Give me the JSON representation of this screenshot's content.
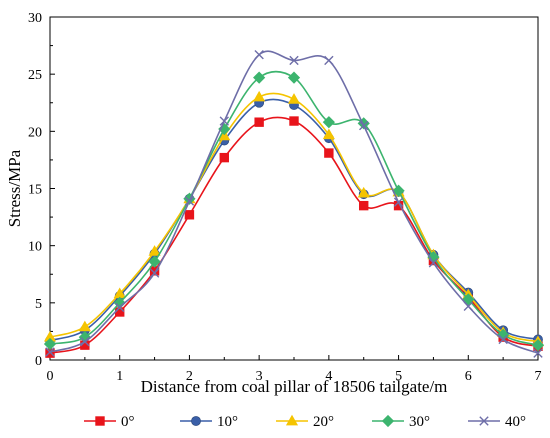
{
  "chart_data": {
    "type": "line",
    "xlabel": "Distance from coal pillar of 18506 tailgate/m",
    "ylabel": "Stress/MPa",
    "xlim": [
      0,
      7
    ],
    "ylim": [
      0,
      30
    ],
    "xticks": [
      "0",
      "1",
      "2",
      "3",
      "4",
      "5",
      "6",
      "7"
    ],
    "yticks": [
      "0",
      "5",
      "10",
      "15",
      "20",
      "25",
      "30"
    ],
    "grid": false,
    "legend_position": "bottom",
    "x": [
      0,
      0.5,
      1,
      1.5,
      2,
      2.5,
      3,
      3.5,
      4,
      4.5,
      5,
      5.5,
      6,
      6.5,
      7
    ],
    "series": [
      {
        "name": "0°",
        "color": "#e8141b",
        "marker": "square",
        "values": [
          0.6,
          1.3,
          4.2,
          7.8,
          12.7,
          17.7,
          20.8,
          20.9,
          18.1,
          13.5,
          13.5,
          8.7,
          5.5,
          2.0,
          1.2
        ]
      },
      {
        "name": "10°",
        "color": "#3a5fa8",
        "marker": "circle",
        "values": [
          1.7,
          2.6,
          5.6,
          9.3,
          14.1,
          19.2,
          22.5,
          22.3,
          19.4,
          14.5,
          14.7,
          9.2,
          5.9,
          2.6,
          1.8
        ]
      },
      {
        "name": "20°",
        "color": "#f5c400",
        "marker": "triangle",
        "values": [
          2.0,
          2.9,
          5.8,
          9.5,
          14.1,
          19.6,
          23.0,
          22.8,
          19.7,
          14.6,
          14.7,
          9.2,
          5.7,
          2.4,
          1.6
        ]
      },
      {
        "name": "30°",
        "color": "#3cb46e",
        "marker": "diamond",
        "values": [
          1.4,
          2.0,
          5.0,
          8.6,
          14.1,
          20.2,
          24.7,
          24.7,
          20.8,
          20.7,
          14.8,
          9.0,
          5.3,
          2.2,
          1.3
        ]
      },
      {
        "name": "40°",
        "color": "#6e6ea8",
        "marker": "cross",
        "values": [
          0.7,
          1.6,
          4.6,
          7.6,
          13.9,
          20.9,
          26.7,
          26.2,
          26.2,
          20.5,
          13.8,
          8.5,
          4.7,
          1.8,
          0.6
        ]
      }
    ]
  }
}
